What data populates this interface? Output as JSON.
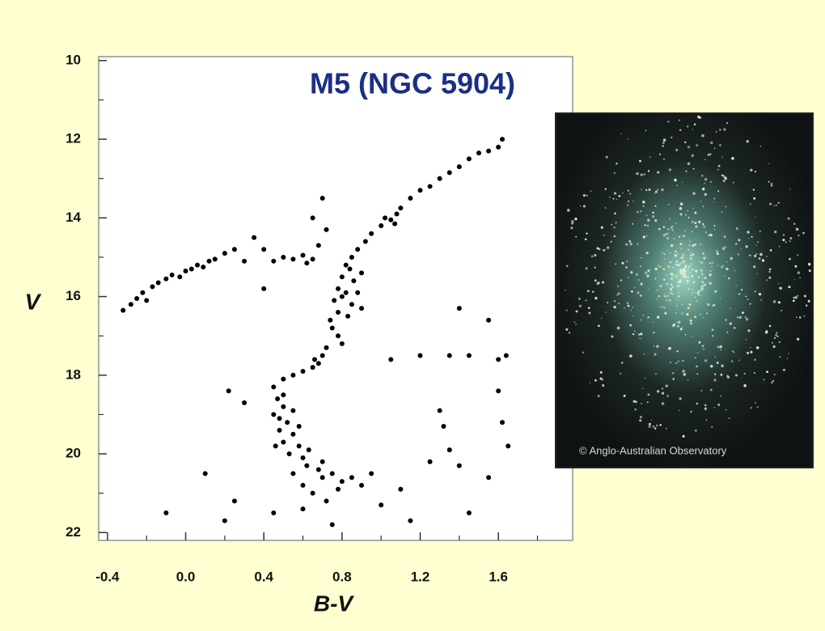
{
  "chart_data": {
    "type": "scatter",
    "title": "M5 (NGC 5904)",
    "xlabel": "B-V",
    "ylabel": "V",
    "x": [
      -0.32,
      -0.28,
      -0.25,
      -0.22,
      -0.2,
      -0.17,
      -0.14,
      -0.1,
      -0.07,
      -0.03,
      0.0,
      0.03,
      0.06,
      0.09,
      0.12,
      0.15,
      0.2,
      0.25,
      0.3,
      0.35,
      0.45,
      0.5,
      0.55,
      0.6,
      0.65,
      0.62,
      0.68,
      0.72,
      0.78,
      0.8,
      0.82,
      0.85,
      0.88,
      0.92,
      0.95,
      1.0,
      1.05,
      1.08,
      1.1,
      1.15,
      1.2,
      1.25,
      1.3,
      1.35,
      1.4,
      1.45,
      1.5,
      1.55,
      1.6,
      1.62,
      1.02,
      1.07,
      0.84,
      0.9,
      0.86,
      0.8,
      0.85,
      0.78,
      0.83,
      0.76,
      0.88,
      0.82,
      0.9,
      0.75,
      0.78,
      0.72,
      0.7,
      0.68,
      0.65,
      0.6,
      0.55,
      0.5,
      0.8,
      0.74,
      0.66,
      0.45,
      0.47,
      0.5,
      0.45,
      0.52,
      0.48,
      0.55,
      0.5,
      0.58,
      0.53,
      0.6,
      0.62,
      0.68,
      0.7,
      0.75,
      0.8,
      0.85,
      0.9,
      0.55,
      0.6,
      0.65,
      0.72,
      0.5,
      0.55,
      0.48,
      0.58,
      0.46,
      0.63,
      0.7,
      0.78,
      0.95,
      0.6,
      0.75,
      0.45,
      -0.1,
      0.1,
      0.2,
      0.25,
      0.3,
      0.22,
      1.05,
      1.2,
      1.35,
      1.45,
      1.6,
      1.64,
      1.4,
      1.55,
      1.3,
      1.32,
      1.6,
      1.62,
      1.65,
      1.25,
      1.35,
      1.4,
      1.55,
      1.45,
      1.15,
      1.1,
      1.0,
      0.4,
      0.4,
      0.7,
      0.65
    ],
    "values": [
      16.35,
      16.2,
      16.05,
      15.9,
      16.1,
      15.75,
      15.65,
      15.55,
      15.45,
      15.5,
      15.35,
      15.3,
      15.2,
      15.25,
      15.1,
      15.05,
      14.9,
      14.8,
      15.1,
      14.5,
      15.1,
      15.0,
      15.05,
      14.95,
      15.05,
      15.15,
      14.7,
      14.3,
      15.8,
      15.5,
      15.2,
      15.0,
      14.8,
      14.6,
      14.4,
      14.2,
      14.05,
      13.9,
      13.75,
      13.5,
      13.3,
      13.2,
      13.0,
      12.85,
      12.7,
      12.5,
      12.35,
      12.3,
      12.2,
      12.0,
      14.0,
      14.15,
      15.3,
      15.4,
      15.6,
      16.0,
      16.2,
      16.4,
      16.5,
      16.1,
      15.9,
      15.9,
      16.3,
      16.8,
      17.0,
      17.3,
      17.5,
      17.7,
      17.8,
      17.9,
      18.0,
      18.1,
      17.2,
      16.6,
      17.6,
      18.3,
      18.6,
      18.8,
      19.0,
      19.2,
      19.4,
      19.5,
      19.7,
      19.8,
      20.0,
      20.1,
      20.3,
      20.4,
      20.6,
      20.5,
      20.7,
      20.6,
      20.8,
      20.5,
      20.8,
      21.0,
      21.2,
      18.5,
      18.9,
      19.1,
      19.3,
      19.8,
      19.9,
      20.2,
      20.9,
      20.5,
      21.4,
      21.8,
      21.5,
      21.5,
      20.5,
      21.7,
      21.2,
      18.7,
      18.4,
      17.6,
      17.5,
      17.5,
      17.5,
      17.6,
      17.5,
      16.3,
      16.6,
      18.9,
      19.3,
      18.4,
      19.2,
      19.8,
      20.2,
      19.9,
      20.3,
      20.6,
      21.5,
      21.7,
      20.9,
      21.3,
      14.8,
      15.8,
      13.5,
      14.0
    ],
    "color": "#000000",
    "xlim": [
      -0.445,
      1.98
    ],
    "ylim": [
      9.9,
      22.2
    ],
    "y_inverted": true,
    "xticks": [
      {
        "value": -0.4,
        "label": "-0.4"
      },
      {
        "value": 0,
        "label": "0.0"
      },
      0.4,
      0.8,
      1.2,
      1.6
    ],
    "xminor": [
      -0.2,
      0.2,
      0.6,
      1.0,
      1.4,
      1.8
    ],
    "yticks": [
      10,
      12,
      14,
      16,
      18,
      20,
      22
    ],
    "yminor": [
      11,
      13,
      15,
      17,
      19,
      21
    ]
  },
  "photo": {
    "credit": "© Anglo-Australian Observatory"
  }
}
